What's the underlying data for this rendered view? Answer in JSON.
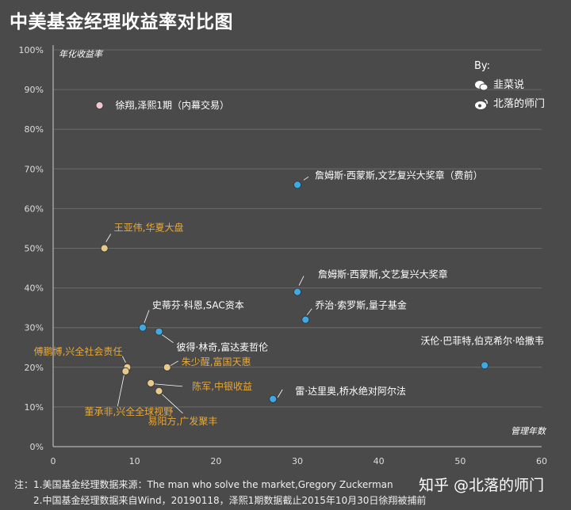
{
  "title": "中美基金经理收益率对比图",
  "byline": {
    "by": "By:",
    "line1": "韭菜说",
    "line1_icon": "wechat-icon",
    "line2": "北落的师门",
    "line2_icon": "weibo-icon"
  },
  "notes": {
    "line1": "注：1.美国基金经理数据来源：The man who solve the market,Gregory Zuckerman",
    "line2": "2.中国基金经理数据来自Wind，20190118，泽熙1期数据截止2015年10月30日徐翔被捕前"
  },
  "brand": "知乎 @北落的师门",
  "colors": {
    "background": "#4a4a4a",
    "us": "#3fa9e6",
    "cn": "#e8c98c",
    "pink": "#f2c9cf",
    "cn_label": "#e6a93b",
    "text": "#ffffff",
    "grid": "#6a6a6a"
  },
  "chart_data": {
    "type": "scatter",
    "title": "中美基金经理收益率对比图",
    "xlabel": "管理年数",
    "ylabel": "年化收益率",
    "xlim": [
      0,
      60
    ],
    "ylim": [
      0,
      100
    ],
    "xticks": [
      0,
      10,
      20,
      30,
      40,
      50,
      60
    ],
    "yticks": [
      0,
      10,
      20,
      30,
      40,
      50,
      60,
      70,
      80,
      90,
      100
    ],
    "ytick_suffix": "%",
    "grid": "horizontal",
    "points": [
      {
        "name": "徐翔,泽熙1期（内幕交易）",
        "x": 5.7,
        "y": 86,
        "group": "pink"
      },
      {
        "name": "詹姆斯·西蒙斯,文艺复兴大奖章（费前）",
        "x": 30,
        "y": 66,
        "group": "us"
      },
      {
        "name": "王亚伟,华夏大盘",
        "x": 6.3,
        "y": 50,
        "group": "cn"
      },
      {
        "name": "詹姆斯·西蒙斯,文艺复兴大奖章",
        "x": 30,
        "y": 39,
        "group": "us"
      },
      {
        "name": "乔治·索罗斯,量子基金",
        "x": 31,
        "y": 32,
        "group": "us"
      },
      {
        "name": "史蒂芬·科恩,SAC资本",
        "x": 11,
        "y": 30,
        "group": "us"
      },
      {
        "name": "彼得·林奇,富达麦哲伦",
        "x": 13,
        "y": 29,
        "group": "us"
      },
      {
        "name": "沃伦·巴菲特,伯克希尔·哈撒韦",
        "x": 53,
        "y": 20.5,
        "group": "us"
      },
      {
        "name": "傅鹏博,兴全社会责任",
        "x": 9.1,
        "y": 20,
        "group": "cn"
      },
      {
        "name": "董承非,兴全全球视野",
        "x": 8.9,
        "y": 19,
        "group": "cn"
      },
      {
        "name": "朱少醒,富国天惠",
        "x": 14,
        "y": 20,
        "group": "cn"
      },
      {
        "name": "陈军,中银收益",
        "x": 12,
        "y": 16,
        "group": "cn"
      },
      {
        "name": "易阳方,广发聚丰",
        "x": 13,
        "y": 14,
        "group": "cn"
      },
      {
        "name": "雷·达里奥,桥水绝对阿尔法",
        "x": 27,
        "y": 12,
        "group": "us"
      }
    ]
  }
}
